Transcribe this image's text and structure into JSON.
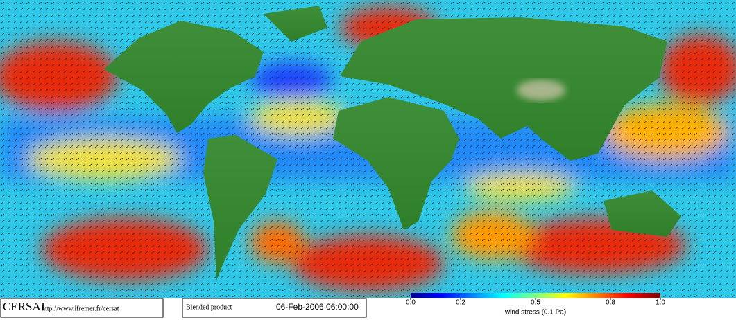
{
  "footer": {
    "logo": "CERSAT",
    "url": "http://www.ifremer.fr/cersat",
    "product": "Blended product",
    "date": "06-Feb-2006 06:00:00"
  },
  "colorbar": {
    "label": "wind stress (0.1 Pa)",
    "lim": [
      0,
      1
    ],
    "ticks": [
      {
        "value": 0,
        "label": "0.0"
      },
      0.2,
      0.5,
      0.8,
      {
        "value": 1,
        "label": "1.0"
      }
    ]
  }
}
